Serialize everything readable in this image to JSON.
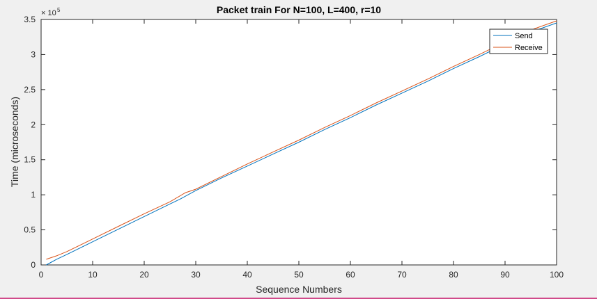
{
  "chart_data": {
    "type": "line",
    "title": "Packet train For N=100, L=400, r=10",
    "xlabel": "Sequence Numbers",
    "ylabel": "Time (microseconds)",
    "xlim": [
      0,
      100
    ],
    "ylim": [
      0,
      350000
    ],
    "xticks": [
      0,
      10,
      20,
      30,
      40,
      50,
      60,
      70,
      80,
      90,
      100
    ],
    "xtick_labels": [
      "0",
      "10",
      "20",
      "30",
      "40",
      "50",
      "60",
      "70",
      "80",
      "90",
      "100"
    ],
    "yticks": [
      0,
      50000,
      100000,
      150000,
      200000,
      250000,
      300000,
      350000
    ],
    "ytick_labels": [
      "0",
      "0.5",
      "1",
      "1.5",
      "2",
      "2.5",
      "3",
      "3.5"
    ],
    "y_exponent_label": "× 10",
    "y_exponent_power": "5",
    "grid": false,
    "legend_position": "top-right",
    "series": [
      {
        "name": "Send",
        "color": "#0072bd",
        "x": [
          1,
          2,
          3,
          5,
          10,
          15,
          20,
          25,
          27,
          30,
          35,
          40,
          45,
          50,
          55,
          60,
          65,
          70,
          75,
          80,
          85,
          90,
          95,
          100
        ],
        "y": [
          0,
          4000,
          8000,
          15000,
          33000,
          51000,
          69000,
          87000,
          94000,
          106000,
          124000,
          141000,
          158000,
          175000,
          193000,
          210000,
          228000,
          245000,
          262000,
          280000,
          297000,
          315000,
          332000,
          345000
        ]
      },
      {
        "name": "Receive",
        "color": "#d95319",
        "x": [
          1,
          3,
          5,
          10,
          15,
          20,
          25,
          28,
          30,
          35,
          40,
          45,
          50,
          55,
          60,
          65,
          70,
          75,
          80,
          85,
          90,
          95,
          100
        ],
        "y": [
          8000,
          13000,
          19000,
          37000,
          55000,
          73000,
          90000,
          103000,
          108000,
          126000,
          144000,
          161000,
          178000,
          196000,
          213000,
          231000,
          248000,
          265000,
          283000,
          300000,
          318000,
          335000,
          348000
        ]
      }
    ]
  }
}
